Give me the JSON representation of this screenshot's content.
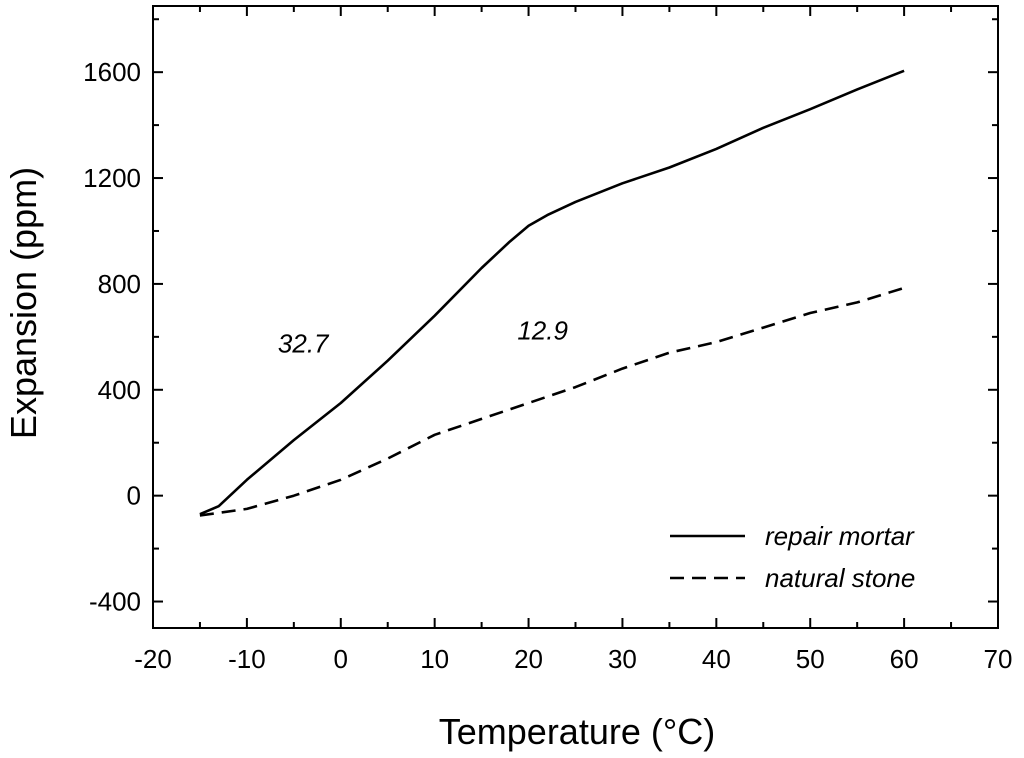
{
  "chart_data": {
    "type": "line",
    "title": "",
    "xlabel": "Temperature (°C)",
    "ylabel": "Expansion (ppm)",
    "xlim": [
      -20,
      70
    ],
    "ylim": [
      -500,
      1850
    ],
    "xticks": [
      -20,
      -10,
      0,
      10,
      20,
      30,
      40,
      50,
      60,
      70
    ],
    "xtick_labels": [
      "-20",
      "-10",
      "0",
      "10",
      "20",
      "30",
      "40",
      "50",
      "60",
      "70"
    ],
    "yticks": [
      -400,
      0,
      400,
      800,
      1200,
      1600
    ],
    "ytick_labels": [
      "-400",
      "0",
      "400",
      "800",
      "1200",
      "1600"
    ],
    "grid": false,
    "legend_position": "bottom-right",
    "series": [
      {
        "name": "repair mortar",
        "style": "solid",
        "x": [
          -15,
          -13,
          -10,
          -5,
          0,
          5,
          10,
          15,
          18,
          20,
          22,
          25,
          30,
          35,
          40,
          45,
          50,
          55,
          60
        ],
        "y": [
          -70,
          -40,
          60,
          210,
          350,
          510,
          680,
          860,
          960,
          1020,
          1060,
          1110,
          1180,
          1240,
          1310,
          1390,
          1460,
          1535,
          1605
        ]
      },
      {
        "name": "natural stone",
        "style": "dashed",
        "x": [
          -15,
          -10,
          -5,
          0,
          5,
          10,
          15,
          20,
          25,
          30,
          35,
          40,
          45,
          50,
          55,
          60
        ],
        "y": [
          -75,
          -50,
          0,
          60,
          140,
          230,
          290,
          350,
          410,
          480,
          540,
          580,
          635,
          690,
          730,
          785
        ]
      }
    ],
    "annotations": [
      {
        "text": "32.7",
        "x": -4,
        "y": 540
      },
      {
        "text": "12.9",
        "x": 21.5,
        "y": 590
      }
    ]
  }
}
